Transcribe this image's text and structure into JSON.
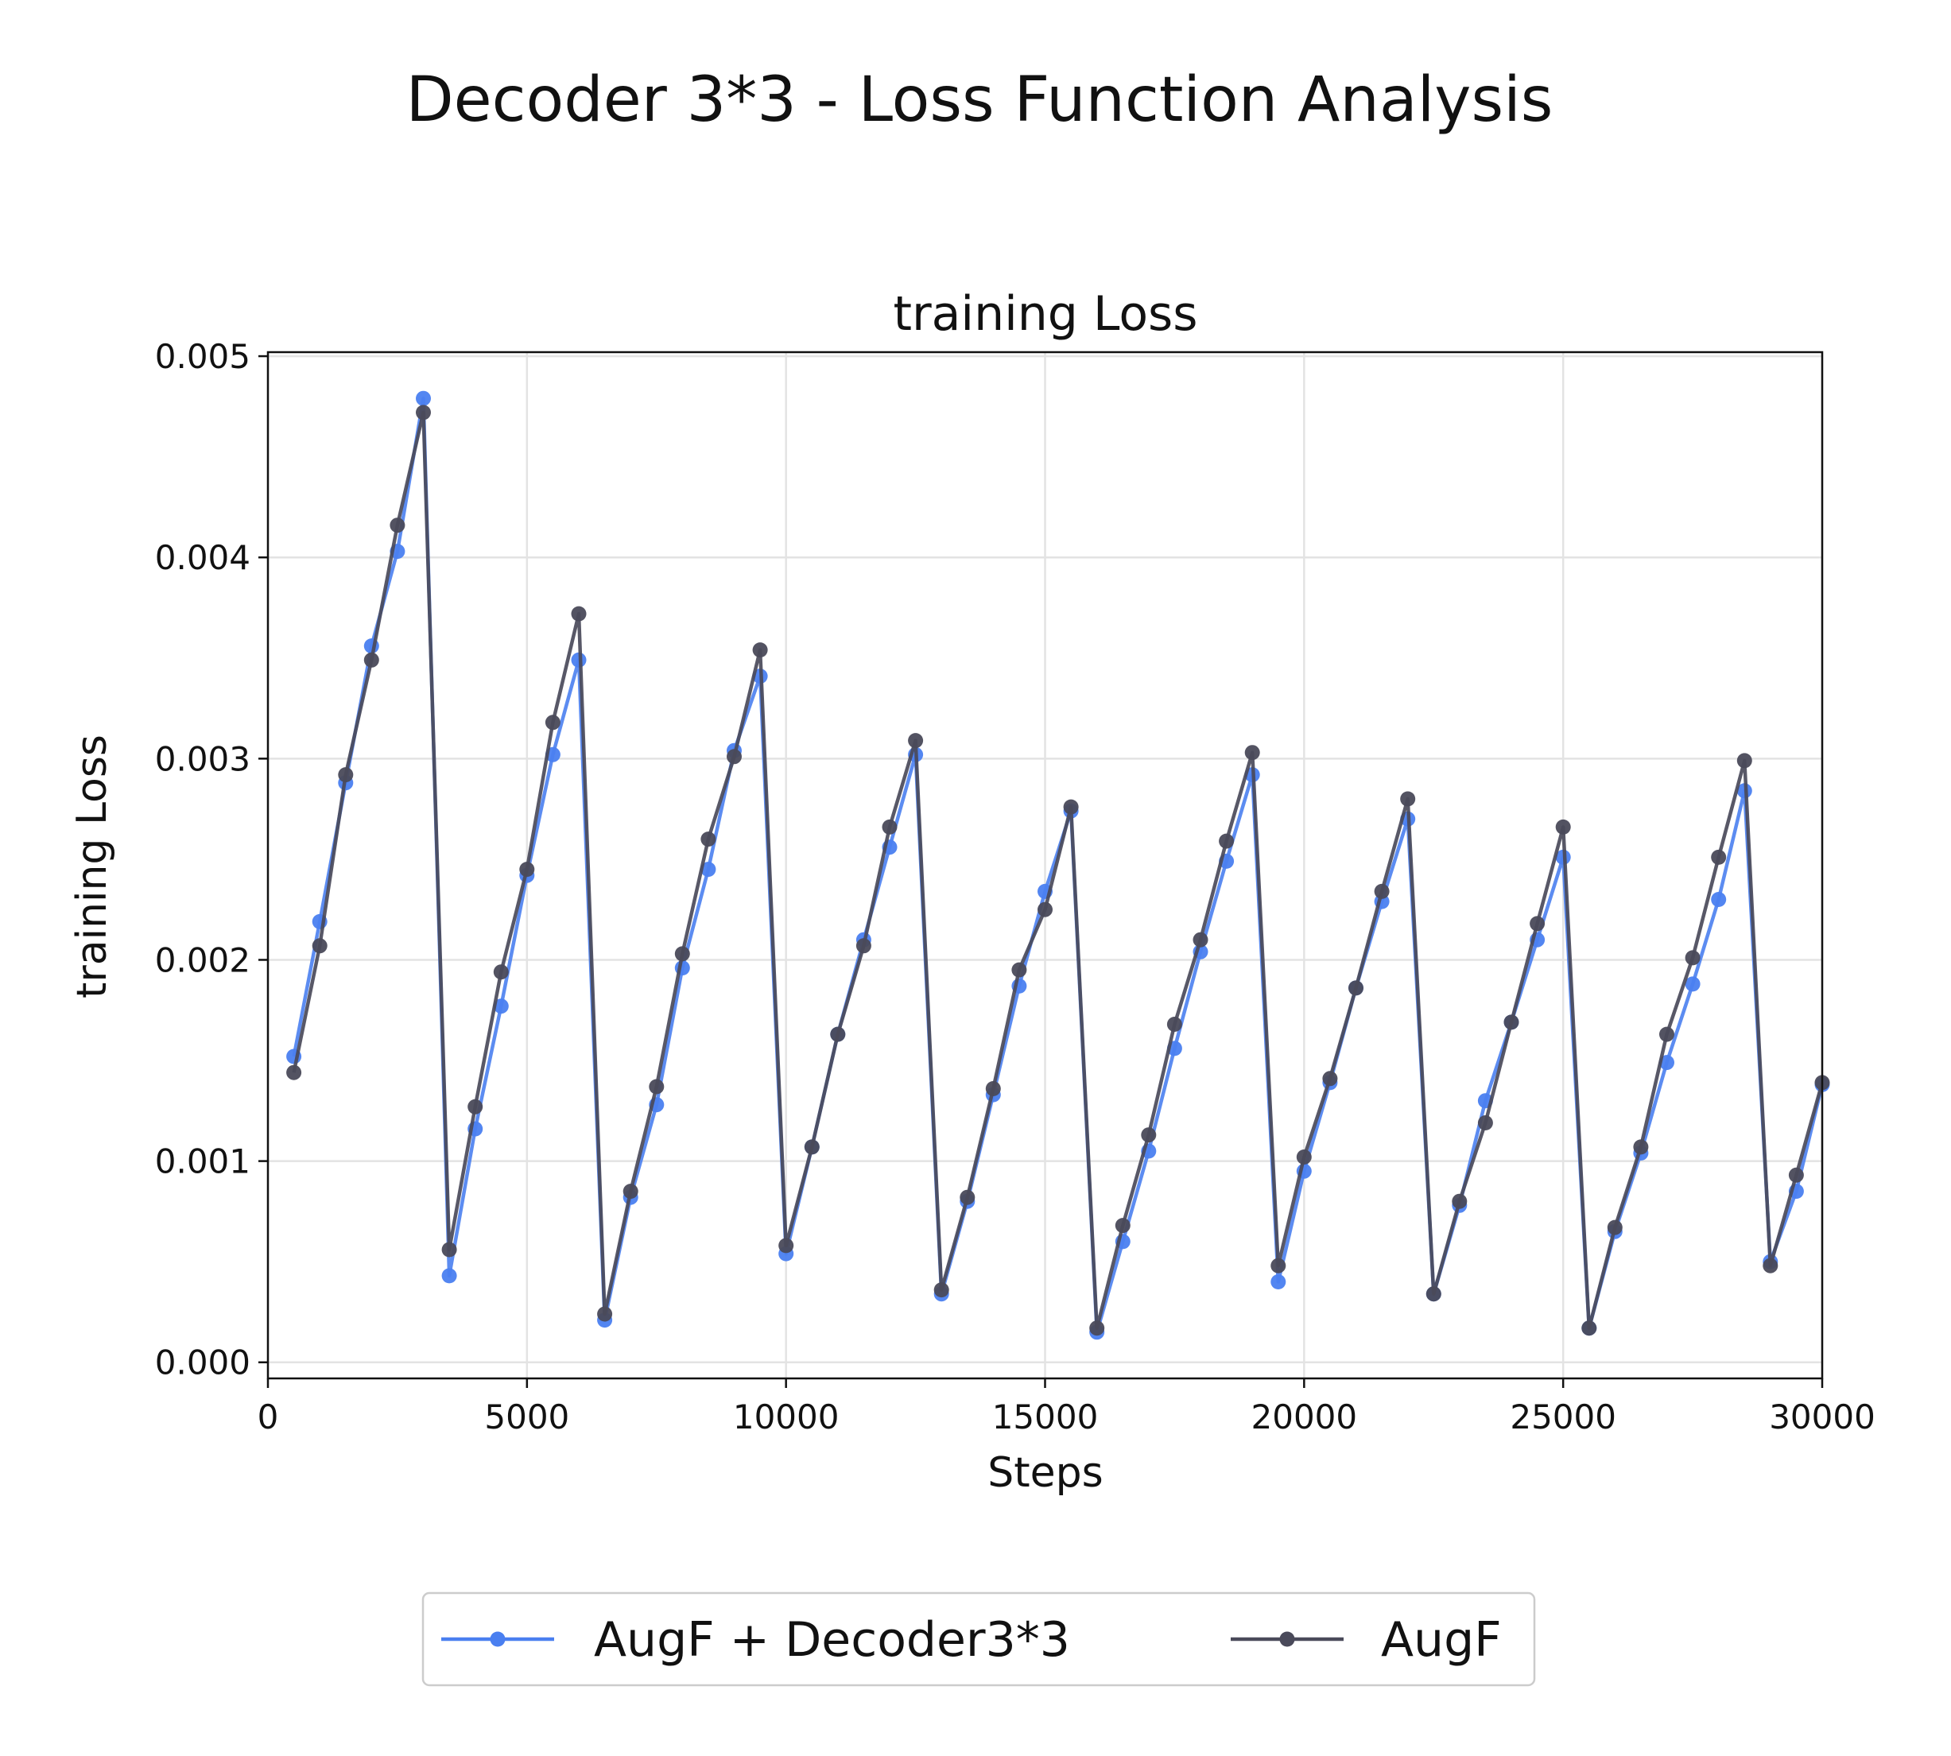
{
  "figure": {
    "suptitle": "Decoder 3*3 - Loss Function Analysis"
  },
  "chart_data": {
    "type": "line",
    "title": "training Loss",
    "xlabel": "Steps",
    "ylabel": "training Loss",
    "xlim": [
      0,
      30000
    ],
    "ylim": [
      -8e-05,
      0.00502
    ],
    "xticks": [
      0,
      5000,
      10000,
      15000,
      20000,
      25000,
      30000
    ],
    "xtick_labels": [
      "0",
      "5000",
      "10000",
      "15000",
      "20000",
      "25000",
      "30000"
    ],
    "yticks": [
      0.0,
      0.001,
      0.002,
      0.003,
      0.004,
      0.005
    ],
    "ytick_labels": [
      "0.000",
      "0.001",
      "0.002",
      "0.003",
      "0.004",
      "0.005"
    ],
    "grid": true,
    "legend_position": "bottom-center",
    "x": [
      500,
      1000,
      1500,
      2000,
      2500,
      3000,
      3500,
      4000,
      4500,
      5000,
      5500,
      6000,
      6500,
      7000,
      7500,
      8000,
      8500,
      9000,
      9500,
      10000,
      10500,
      11000,
      11500,
      12000,
      12500,
      13000,
      13500,
      14000,
      14500,
      15000,
      15500,
      16000,
      16500,
      17000,
      17500,
      18000,
      18500,
      19000,
      19500,
      20000,
      20500,
      21000,
      21500,
      22000,
      22500,
      23000,
      23500,
      24000,
      24500,
      25000,
      25500,
      26000,
      26500,
      27000,
      27500,
      28000,
      28500,
      29000,
      29500,
      30000
    ],
    "series": [
      {
        "name": "AugF + Decoder3*3",
        "color": "#4a7ff0",
        "values": [
          0.00152,
          0.00219,
          0.00288,
          0.00356,
          0.00403,
          0.00479,
          0.00043,
          0.00116,
          0.00177,
          0.00242,
          0.00302,
          0.00349,
          0.00021,
          0.00082,
          0.00128,
          0.00196,
          0.00245,
          0.00304,
          0.00341,
          0.00054,
          0.00107,
          0.00163,
          0.0021,
          0.00256,
          0.00302,
          0.00034,
          0.0008,
          0.00133,
          0.00187,
          0.00234,
          0.00274,
          0.00015,
          0.0006,
          0.00105,
          0.00156,
          0.00204,
          0.00249,
          0.00292,
          0.0004,
          0.00095,
          0.00139,
          0.00186,
          0.00229,
          0.0027,
          0.00034,
          0.00078,
          0.0013,
          0.00169,
          0.0021,
          0.00251,
          0.00017,
          0.00065,
          0.00104,
          0.00149,
          0.00188,
          0.0023,
          0.00284,
          0.0005,
          0.00085,
          0.00138
        ]
      },
      {
        "name": "AugF",
        "color": "#4a4a5a",
        "values": [
          0.00144,
          0.00207,
          0.00292,
          0.00349,
          0.00416,
          0.00472,
          0.00056,
          0.00127,
          0.00194,
          0.00245,
          0.00318,
          0.00372,
          0.00024,
          0.00085,
          0.00137,
          0.00203,
          0.0026,
          0.00301,
          0.00354,
          0.00058,
          0.00107,
          0.00163,
          0.00207,
          0.00266,
          0.00309,
          0.00036,
          0.00082,
          0.00136,
          0.00195,
          0.00225,
          0.00276,
          0.00017,
          0.00068,
          0.00113,
          0.00168,
          0.0021,
          0.00259,
          0.00303,
          0.00048,
          0.00102,
          0.00141,
          0.00186,
          0.00234,
          0.0028,
          0.00034,
          0.0008,
          0.00119,
          0.00169,
          0.00218,
          0.00266,
          0.00017,
          0.00067,
          0.00107,
          0.00163,
          0.00201,
          0.00251,
          0.00299,
          0.00048,
          0.00093,
          0.00139
        ]
      }
    ]
  }
}
